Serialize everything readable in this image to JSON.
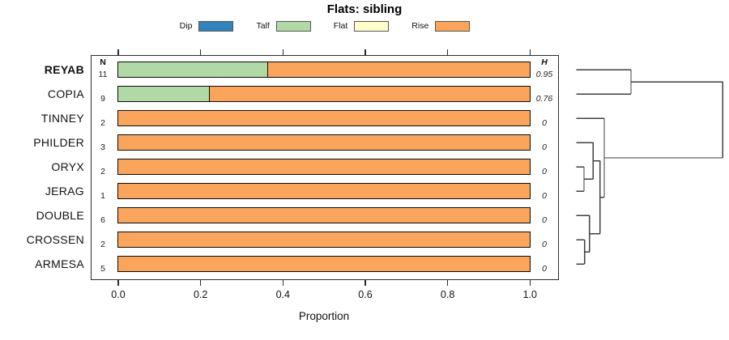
{
  "chart_data": {
    "type": "bar",
    "orientation": "horizontal",
    "stacked": true,
    "title": "Flats: sibling",
    "xlabel": "Proportion",
    "xlim": [
      0,
      1
    ],
    "xticks": [
      0.0,
      0.2,
      0.4,
      0.6,
      0.8,
      1.0
    ],
    "xtick_labels": [
      "0.0",
      "0.2",
      "0.4",
      "0.6",
      "0.8",
      "1.0"
    ],
    "grid": false,
    "legend_position": "top-center",
    "columns": {
      "n": "N",
      "h": "H"
    },
    "categories": [
      "REYAB",
      "COPIA",
      "TINNEY",
      "PHILDER",
      "ORYX",
      "JERAG",
      "DOUBLE",
      "CROSSEN",
      "ARMESA"
    ],
    "bold_categories": [
      "REYAB"
    ],
    "n_values": [
      "11",
      "9",
      "2",
      "3",
      "2",
      "1",
      "6",
      "2",
      "5"
    ],
    "h_values": [
      "0.95",
      "0.76",
      "0",
      "0",
      "0",
      "0",
      "0",
      "0",
      "0"
    ],
    "series": [
      {
        "name": "Dip",
        "color": "#3182bd",
        "values": [
          0,
          0,
          0,
          0,
          0,
          0,
          0,
          0,
          0
        ]
      },
      {
        "name": "Talf",
        "color": "#b1d9a6",
        "values": [
          0.364,
          0.222,
          0,
          0,
          0,
          0,
          0,
          0,
          0
        ]
      },
      {
        "name": "Flat",
        "color": "#ffffc9",
        "values": [
          0,
          0,
          0,
          0,
          0,
          0,
          0,
          0,
          0
        ]
      },
      {
        "name": "Rise",
        "color": "#fba55c",
        "values": [
          0.636,
          0.778,
          1,
          1,
          1,
          1,
          1,
          1,
          1
        ]
      }
    ],
    "dendrogram": {
      "side": "right",
      "leaves": [
        "REYAB",
        "COPIA",
        "TINNEY",
        "PHILDER",
        "ORYX",
        "JERAG",
        "DOUBLE",
        "CROSSEN",
        "ARMESA"
      ],
      "merges": [
        {
          "id": "n1",
          "a": "ORYX",
          "b": "JERAG",
          "h": 0.052
        },
        {
          "id": "n2",
          "a": "CROSSEN",
          "b": "ARMESA",
          "h": 0.055
        },
        {
          "id": "n3",
          "a": "PHILDER",
          "b": "n1",
          "h": 0.114
        },
        {
          "id": "n4",
          "a": "DOUBLE",
          "b": "n2",
          "h": 0.089
        },
        {
          "id": "n5",
          "a": "n3",
          "b": "n4",
          "h": 0.161
        },
        {
          "id": "n6",
          "a": "TINNEY",
          "b": "n5",
          "h": 0.19
        },
        {
          "id": "n7",
          "a": "REYAB",
          "b": "COPIA",
          "h": 0.373
        },
        {
          "id": "root",
          "a": "n7",
          "b": "n6",
          "h": 1.0
        }
      ]
    },
    "line_color": "#3f3f3f",
    "border_color": "#0a0a0a"
  }
}
